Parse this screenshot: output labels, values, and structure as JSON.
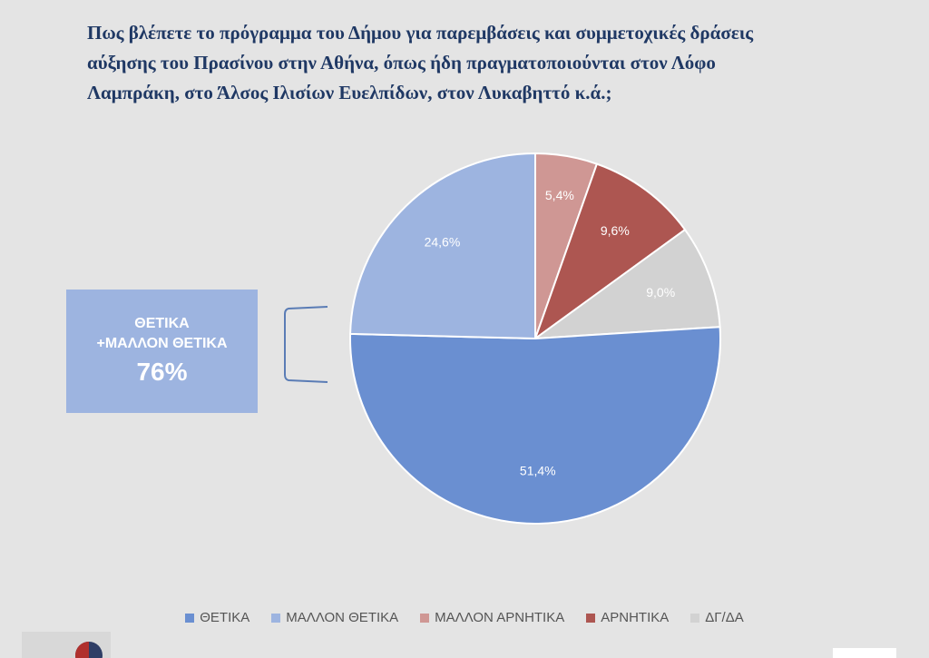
{
  "title_lines": [
    "Πως βλέπετε το πρόγραμμα του Δήμου για παρεμβάσεις και συμμετοχικές δράσεις",
    "αύξησης του Πρασίνου στην Αθήνα, όπως ήδη πραγματοποιούνται στον Λόφο",
    "Λαμπράκη, στο Άλσος Ιλισίων Ευελπίδων, στον Λυκαβηττό κ.ά.;"
  ],
  "callout": {
    "line1": "ΘΕΤΙΚΑ",
    "line2": "+ΜΑΛΛΟΝ ΘΕΤΙΚΑ",
    "value": "76%"
  },
  "chart_data": {
    "type": "pie",
    "slices": [
      {
        "label": "ΘΕΤΙΚΑ",
        "value": 51.4,
        "display": "51,4%",
        "color": "#6a8fd1"
      },
      {
        "label": "ΜΑΛΛΟΝ ΘΕΤΙΚΑ",
        "value": 24.6,
        "display": "24,6%",
        "color": "#9db4e0"
      },
      {
        "label": "ΜΑΛΛΟΝ ΑΡΝΗΤΙΚΑ",
        "value": 5.4,
        "display": "5,4%",
        "color": "#cf9794"
      },
      {
        "label": "ΑΡΝΗΤΙΚΑ",
        "value": 9.6,
        "display": "9,6%",
        "color": "#ad5651"
      },
      {
        "label": "ΔΓ/ΔΑ",
        "value": 9.0,
        "display": "9,0%",
        "color": "#d2d2d2"
      }
    ],
    "legend_position": "bottom"
  }
}
